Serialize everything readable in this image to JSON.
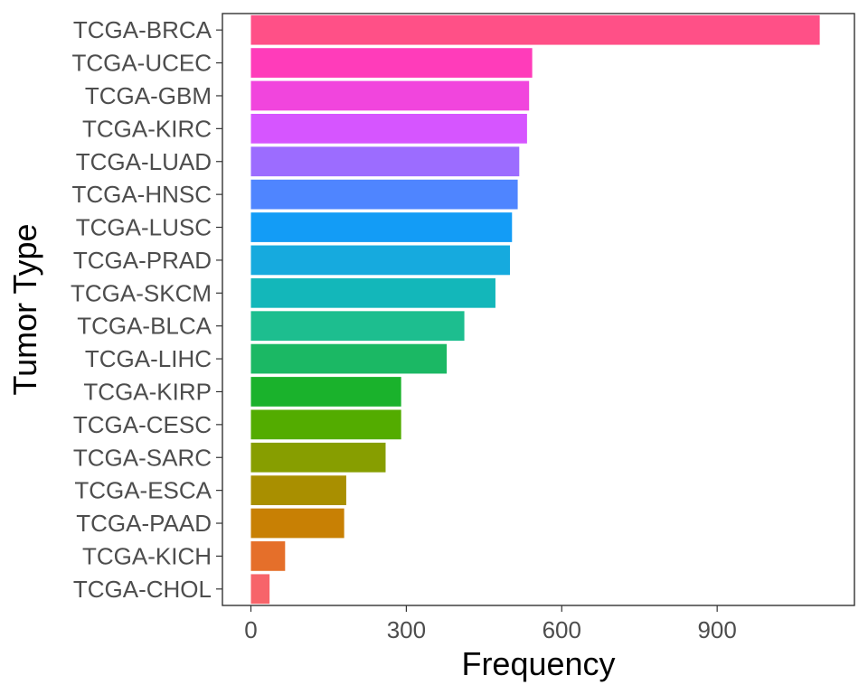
{
  "chart_data": {
    "type": "bar",
    "orientation": "horizontal",
    "xlabel": "Frequency",
    "ylabel": "Tumor Type",
    "xlim": [
      -55,
      1165
    ],
    "xticks": [
      0,
      300,
      600,
      900
    ],
    "xtick_labels": [
      "0",
      "300",
      "600",
      "900"
    ],
    "grid": false,
    "legend": "none",
    "categories": [
      "TCGA-BRCA",
      "TCGA-UCEC",
      "TCGA-GBM",
      "TCGA-KIRC",
      "TCGA-LUAD",
      "TCGA-HNSC",
      "TCGA-LUSC",
      "TCGA-PRAD",
      "TCGA-SKCM",
      "TCGA-BLCA",
      "TCGA-LIHC",
      "TCGA-KIRP",
      "TCGA-CESC",
      "TCGA-SARC",
      "TCGA-ESCA",
      "TCGA-PAAD",
      "TCGA-KICH",
      "TCGA-CHOL"
    ],
    "values": [
      1098,
      543,
      537,
      533,
      518,
      515,
      504,
      500,
      472,
      412,
      378,
      290,
      290,
      260,
      184,
      180,
      66,
      36
    ],
    "colors": [
      "#FF5087",
      "#FF3CBA",
      "#F145DD",
      "#D655FF",
      "#9C6CFF",
      "#4F85FF",
      "#139CF6",
      "#16AADE",
      "#13B7BA",
      "#1DBE8F",
      "#1BB864",
      "#1AB22C",
      "#53AC00",
      "#879E00",
      "#A98F00",
      "#C88004",
      "#E56F2A",
      "#F7646A"
    ]
  }
}
